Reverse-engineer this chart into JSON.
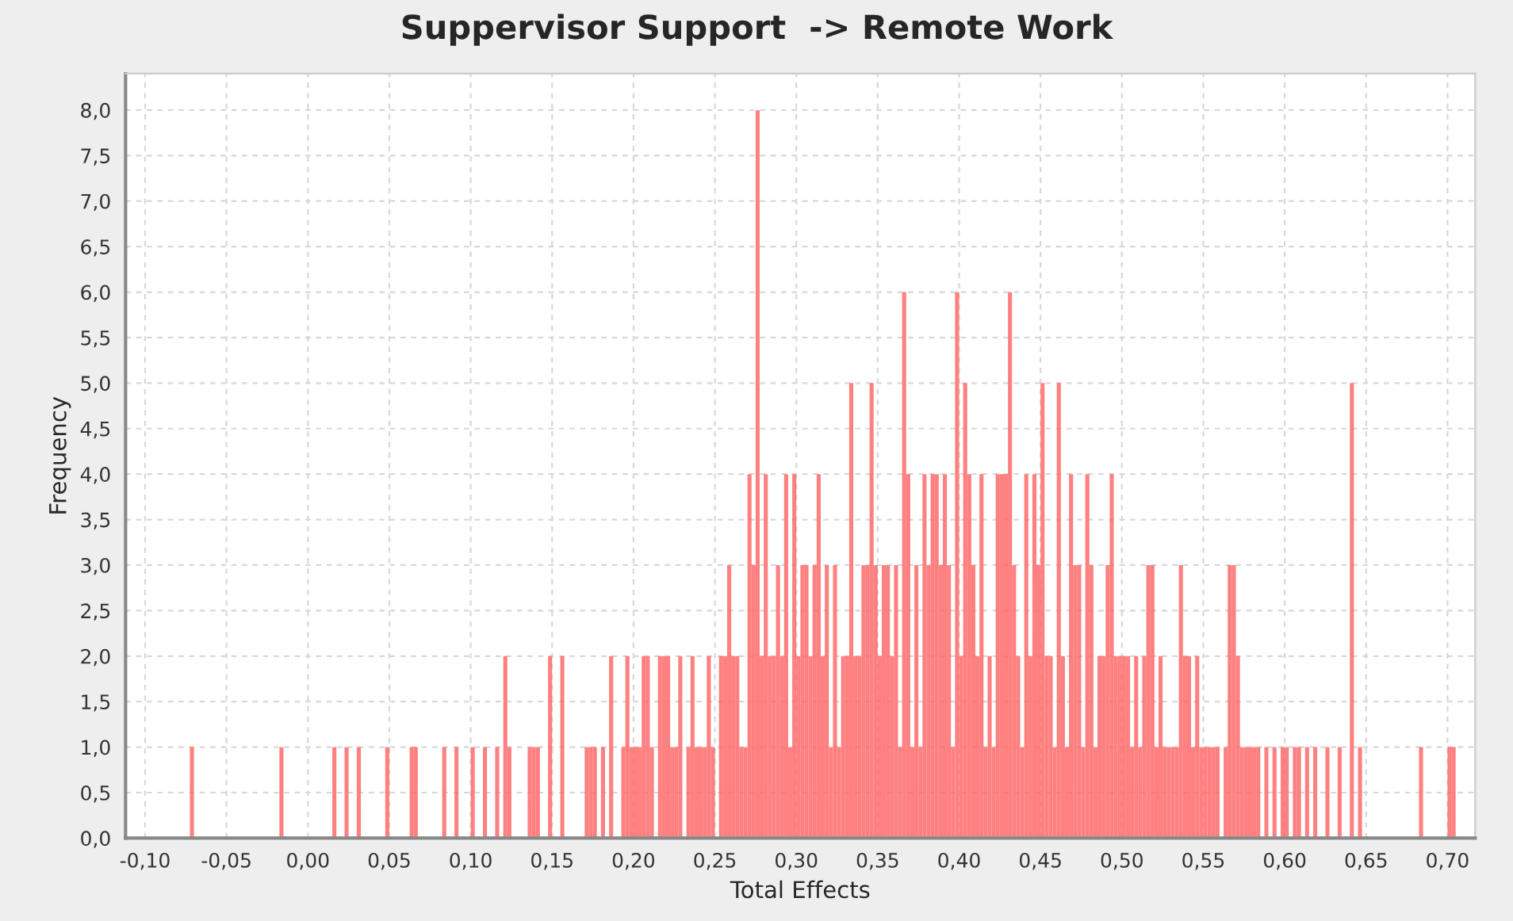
{
  "chart_data": {
    "type": "histogram",
    "title": "Suppervisor Support  -> Remote Work",
    "xlabel": "Total Effects",
    "ylabel": "Frequency",
    "color": "#ff6a6a",
    "grid": true,
    "legend": false,
    "bins": [
      -0.1,
      -0.0975,
      -0.095,
      -0.0925,
      -0.09,
      -0.0875,
      -0.085,
      -0.0825,
      -0.08,
      -0.0775,
      -0.075,
      -0.0725,
      -0.07,
      -0.0675,
      -0.065,
      -0.0625,
      -0.06,
      -0.0575,
      -0.055,
      -0.0525,
      -0.05,
      -0.0475,
      -0.045,
      -0.0425,
      -0.04,
      -0.0375,
      -0.035,
      -0.0325,
      -0.03,
      -0.0275,
      -0.025,
      -0.0225,
      -0.02,
      -0.0175,
      -0.015,
      -0.0125,
      -0.01,
      -0.0075,
      -0.005,
      -0.0025,
      0,
      0.0025,
      0.005,
      0.0075,
      0.01,
      0.0125,
      0.015,
      0.0175,
      0.02,
      0.0225,
      0.025,
      0.0275,
      0.03,
      0.0325,
      0.035,
      0.0375,
      0.04,
      0.0425,
      0.045,
      0.0475,
      0.05,
      0.0525,
      0.055,
      0.0575,
      0.06,
      0.0625,
      0.065,
      0.0675,
      0.07,
      0.0725,
      0.075,
      0.0775,
      0.08,
      0.0825,
      0.085,
      0.0875,
      0.09,
      0.0925,
      0.095,
      0.0975,
      0.1,
      0.1025,
      0.105,
      0.1075,
      0.11,
      0.1125,
      0.115,
      0.1175,
      0.12,
      0.1225,
      0.125,
      0.1275,
      0.13,
      0.1325,
      0.135,
      0.1375,
      0.14,
      0.1425,
      0.145,
      0.1475,
      0.15,
      0.1525,
      0.155,
      0.1575,
      0.16,
      0.1625,
      0.165,
      0.1675,
      0.17,
      0.1725,
      0.175,
      0.1775,
      0.18,
      0.1825,
      0.185,
      0.1875,
      0.19,
      0.1925,
      0.195,
      0.1975,
      0.2,
      0.2025,
      0.205,
      0.2075,
      0.21,
      0.2125,
      0.215,
      0.2175,
      0.22,
      0.2225,
      0.225,
      0.2275,
      0.23,
      0.2325,
      0.235,
      0.2375,
      0.24,
      0.2425,
      0.245,
      0.2475,
      0.25,
      0.2525,
      0.255,
      0.2575,
      0.26,
      0.2625,
      0.265,
      0.2675,
      0.27,
      0.2725,
      0.275,
      0.2775,
      0.28,
      0.2825,
      0.285,
      0.2875,
      0.29,
      0.2925,
      0.295,
      0.2975,
      0.3,
      0.3025,
      0.305,
      0.3075,
      0.31,
      0.3125,
      0.315,
      0.3175,
      0.32,
      0.3225,
      0.325,
      0.3275,
      0.33,
      0.3325,
      0.335,
      0.3375,
      0.34,
      0.3425,
      0.345,
      0.3475,
      0.35,
      0.3525,
      0.355,
      0.3575,
      0.36,
      0.3625,
      0.365,
      0.3675,
      0.37,
      0.3725,
      0.375,
      0.3775,
      0.38,
      0.3825,
      0.385,
      0.3875,
      0.39,
      0.3925,
      0.395,
      0.3975,
      0.4,
      0.4025,
      0.405,
      0.4075,
      0.41,
      0.4125,
      0.415,
      0.4175,
      0.42,
      0.4225,
      0.425,
      0.4275,
      0.43,
      0.4325,
      0.435,
      0.4375,
      0.44,
      0.4425,
      0.445,
      0.4475,
      0.45,
      0.4525,
      0.455,
      0.4575,
      0.46,
      0.4625,
      0.465,
      0.4675,
      0.47,
      0.4725,
      0.475,
      0.4775,
      0.48,
      0.4825,
      0.485,
      0.4875,
      0.49,
      0.4925,
      0.495,
      0.4975,
      0.5,
      0.5025,
      0.505,
      0.5075,
      0.51,
      0.5125,
      0.515,
      0.5175,
      0.52,
      0.5225,
      0.525,
      0.5275,
      0.53,
      0.5325,
      0.535,
      0.5375,
      0.54,
      0.5425,
      0.545,
      0.5475,
      0.55,
      0.5525,
      0.555,
      0.5575,
      0.56,
      0.5625,
      0.565,
      0.5675,
      0.57,
      0.5725,
      0.575,
      0.5775,
      0.58,
      0.5825,
      0.585,
      0.5875,
      0.59,
      0.5925,
      0.595,
      0.5975,
      0.6,
      0.6025,
      0.605,
      0.6075,
      0.61,
      0.6125,
      0.615,
      0.6175,
      0.62,
      0.6225,
      0.625,
      0.6275,
      0.63,
      0.6325,
      0.635,
      0.6375,
      0.64,
      0.6425,
      0.645,
      0.6475,
      0.65,
      0.6525,
      0.655,
      0.6575,
      0.66,
      0.6625,
      0.665,
      0.6675,
      0.67,
      0.6725,
      0.675,
      0.6775,
      0.68,
      0.6825,
      0.685,
      0.6875,
      0.69,
      0.6925,
      0.695,
      0.6975,
      0.7,
      0.7025,
      0.705
    ],
    "values": [
      0,
      0,
      0,
      0,
      0,
      0,
      0,
      0,
      0,
      0,
      0,
      1,
      0,
      0,
      0,
      0,
      0,
      0,
      0,
      0,
      0,
      0,
      0,
      0,
      0,
      0,
      0,
      0,
      0,
      0,
      0,
      0,
      0,
      1,
      0,
      0,
      0,
      0,
      0,
      0,
      0,
      0,
      0,
      0,
      0,
      0,
      1,
      0,
      0,
      1,
      0,
      0,
      1,
      0,
      0,
      0,
      0,
      0,
      0,
      1,
      0,
      0,
      0,
      0,
      0,
      1,
      1,
      0,
      0,
      0,
      0,
      0,
      0,
      1,
      0,
      0,
      1,
      0,
      0,
      0,
      1,
      0,
      0,
      1,
      0,
      0,
      1,
      0,
      2,
      1,
      0,
      0,
      0,
      0,
      1,
      1,
      1,
      0,
      0,
      2,
      0,
      0,
      2,
      0,
      0,
      0,
      0,
      0,
      1,
      1,
      1,
      0,
      1,
      0,
      2,
      0,
      0,
      1,
      2,
      1,
      1,
      1,
      2,
      2,
      1,
      0,
      2,
      2,
      2,
      1,
      1,
      2,
      0,
      1,
      2,
      1,
      1,
      1,
      2,
      1,
      0,
      2,
      2,
      3,
      2,
      2,
      1,
      1,
      4,
      3,
      8,
      2,
      4,
      2,
      2,
      3,
      2,
      4,
      1,
      4,
      2,
      3,
      3,
      2,
      3,
      4,
      2,
      3,
      1,
      3,
      1,
      2,
      2,
      5,
      2,
      2,
      3,
      3,
      5,
      3,
      2,
      3,
      3,
      2,
      3,
      1,
      6,
      4,
      1,
      3,
      1,
      4,
      3,
      4,
      4,
      3,
      4,
      3,
      1,
      6,
      2,
      5,
      4,
      3,
      2,
      4,
      1,
      2,
      1,
      4,
      4,
      4,
      6,
      3,
      2,
      1,
      4,
      2,
      4,
      3,
      5,
      2,
      2,
      1,
      5,
      2,
      1,
      4,
      3,
      3,
      1,
      4,
      3,
      1,
      2,
      2,
      3,
      4,
      2,
      2,
      2,
      2,
      1,
      2,
      1,
      2,
      3,
      3,
      1,
      2,
      1,
      1,
      1,
      1,
      3,
      2,
      2,
      1,
      2,
      1,
      1,
      1,
      1,
      1,
      0,
      1,
      3,
      3,
      2,
      1,
      1,
      1,
      1,
      1,
      0,
      1,
      0,
      1,
      0,
      1,
      1,
      0,
      1,
      1,
      0,
      1,
      0,
      1,
      0,
      0,
      1,
      0,
      0,
      1,
      0,
      0,
      5,
      0,
      1,
      0,
      0,
      0,
      0,
      0,
      0,
      0,
      0,
      0,
      0,
      0,
      0,
      0,
      0,
      1,
      0,
      0,
      0,
      0,
      0,
      0,
      1,
      1
    ],
    "xlim": [
      -0.112,
      0.717
    ],
    "ylim": [
      0,
      8.4
    ],
    "xticks": [
      {
        "value": -0.1,
        "label": "-0,10"
      },
      {
        "value": -0.05,
        "label": "-0,05"
      },
      {
        "value": 0,
        "label": "0,00"
      },
      {
        "value": 0.05,
        "label": "0,05"
      },
      {
        "value": 0.1,
        "label": "0,10"
      },
      {
        "value": 0.15,
        "label": "0,15"
      },
      {
        "value": 0.2,
        "label": "0,20"
      },
      {
        "value": 0.25,
        "label": "0,25"
      },
      {
        "value": 0.3,
        "label": "0,30"
      },
      {
        "value": 0.35,
        "label": "0,35"
      },
      {
        "value": 0.4,
        "label": "0,40"
      },
      {
        "value": 0.45,
        "label": "0,45"
      },
      {
        "value": 0.5,
        "label": "0,50"
      },
      {
        "value": 0.55,
        "label": "0,55"
      },
      {
        "value": 0.6,
        "label": "0,60"
      },
      {
        "value": 0.65,
        "label": "0,65"
      },
      {
        "value": 0.7,
        "label": "0,70"
      }
    ],
    "yticks": [
      {
        "value": 0,
        "label": "0,0"
      },
      {
        "value": 0.5,
        "label": "0,5"
      },
      {
        "value": 1,
        "label": "1,0"
      },
      {
        "value": 1.5,
        "label": "1,5"
      },
      {
        "value": 2,
        "label": "2,0"
      },
      {
        "value": 2.5,
        "label": "2,5"
      },
      {
        "value": 3,
        "label": "3,0"
      },
      {
        "value": 3.5,
        "label": "3,5"
      },
      {
        "value": 4,
        "label": "4,0"
      },
      {
        "value": 4.5,
        "label": "4,5"
      },
      {
        "value": 5,
        "label": "5,0"
      },
      {
        "value": 5.5,
        "label": "5,5"
      },
      {
        "value": 6,
        "label": "6,0"
      },
      {
        "value": 6.5,
        "label": "6,5"
      },
      {
        "value": 7,
        "label": "7,0"
      },
      {
        "value": 7.5,
        "label": "7,5"
      },
      {
        "value": 8,
        "label": "8,0"
      }
    ]
  }
}
